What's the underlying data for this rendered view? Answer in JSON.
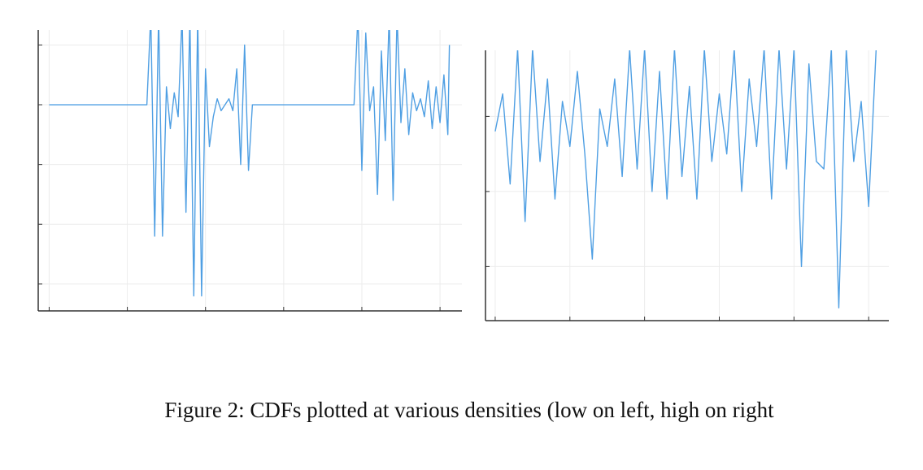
{
  "chart_data": [
    {
      "type": "line",
      "color": "#4f9fe3",
      "grid": true,
      "xlim": [
        -0.14,
        5.28
      ],
      "ylim": [
        -2.45,
        2.25
      ],
      "xticks": [
        0,
        1,
        2,
        3,
        4,
        5
      ],
      "yticks": [
        -2,
        -1,
        0,
        1,
        2
      ],
      "x": [
        0,
        1.25,
        1.3,
        1.35,
        1.4,
        1.45,
        1.5,
        1.55,
        1.6,
        1.65,
        1.7,
        1.75,
        1.8,
        1.85,
        1.9,
        1.95,
        2.0,
        2.05,
        2.1,
        2.15,
        2.2,
        2.25,
        2.3,
        2.35,
        2.4,
        2.45,
        2.5,
        2.55,
        2.6,
        3.9,
        3.95,
        4.0,
        4.05,
        4.1,
        4.15,
        4.2,
        4.25,
        4.3,
        4.35,
        4.4,
        4.45,
        4.5,
        4.55,
        4.6,
        4.65,
        4.7,
        4.75,
        4.8,
        4.85,
        4.9,
        4.95,
        5.0,
        5.05,
        5.1,
        5.12
      ],
      "values": [
        1.0,
        1.0,
        2.5,
        -1.2,
        2.5,
        -1.2,
        1.3,
        0.6,
        1.2,
        0.8,
        2.5,
        -0.8,
        2.5,
        -2.2,
        2.5,
        -2.2,
        1.6,
        0.3,
        0.8,
        1.1,
        0.9,
        1.0,
        1.1,
        0.9,
        1.6,
        0.0,
        2.0,
        -0.1,
        1.0,
        1.0,
        2.5,
        -0.1,
        2.2,
        0.9,
        1.3,
        -0.5,
        1.9,
        0.4,
        2.5,
        -0.6,
        2.5,
        0.7,
        1.6,
        0.5,
        1.2,
        0.9,
        1.1,
        0.8,
        1.4,
        0.6,
        1.3,
        0.7,
        1.5,
        0.5,
        2.0
      ]
    },
    {
      "type": "line",
      "color": "#4f9fe3",
      "grid": true,
      "xlim": [
        -0.13,
        5.27
      ],
      "ylim": [
        -1.72,
        1.88
      ],
      "xticks": [
        0,
        1,
        2,
        3,
        4,
        5
      ],
      "yticks": [
        -1,
        0,
        1
      ],
      "x": [
        0,
        0.1,
        0.2,
        0.3,
        0.4,
        0.5,
        0.6,
        0.7,
        0.8,
        0.9,
        1.0,
        1.1,
        1.2,
        1.3,
        1.4,
        1.5,
        1.6,
        1.7,
        1.8,
        1.9,
        2.0,
        2.1,
        2.2,
        2.3,
        2.4,
        2.5,
        2.6,
        2.7,
        2.8,
        2.9,
        3.0,
        3.1,
        3.2,
        3.3,
        3.4,
        3.5,
        3.6,
        3.7,
        3.8,
        3.9,
        4.0,
        4.1,
        4.2,
        4.3,
        4.4,
        4.5,
        4.6,
        4.7,
        4.8,
        4.9,
        5.0,
        5.1
      ],
      "values": [
        0.8,
        1.3,
        0.1,
        1.9,
        -0.4,
        1.9,
        0.4,
        1.5,
        -0.1,
        1.2,
        0.6,
        1.6,
        0.5,
        -0.9,
        1.1,
        0.6,
        1.5,
        0.2,
        1.9,
        0.3,
        1.9,
        0.0,
        1.6,
        -0.1,
        1.9,
        0.2,
        1.4,
        -0.1,
        1.9,
        0.4,
        1.3,
        0.5,
        1.9,
        0.0,
        1.5,
        0.6,
        1.9,
        -0.1,
        1.9,
        0.3,
        1.9,
        -1.0,
        1.7,
        0.4,
        0.3,
        1.9,
        -1.55,
        1.9,
        0.4,
        1.2,
        -0.2,
        1.9
      ]
    }
  ],
  "caption": "Figure 2: CDFs plotted at various densities (low on left, high on right"
}
